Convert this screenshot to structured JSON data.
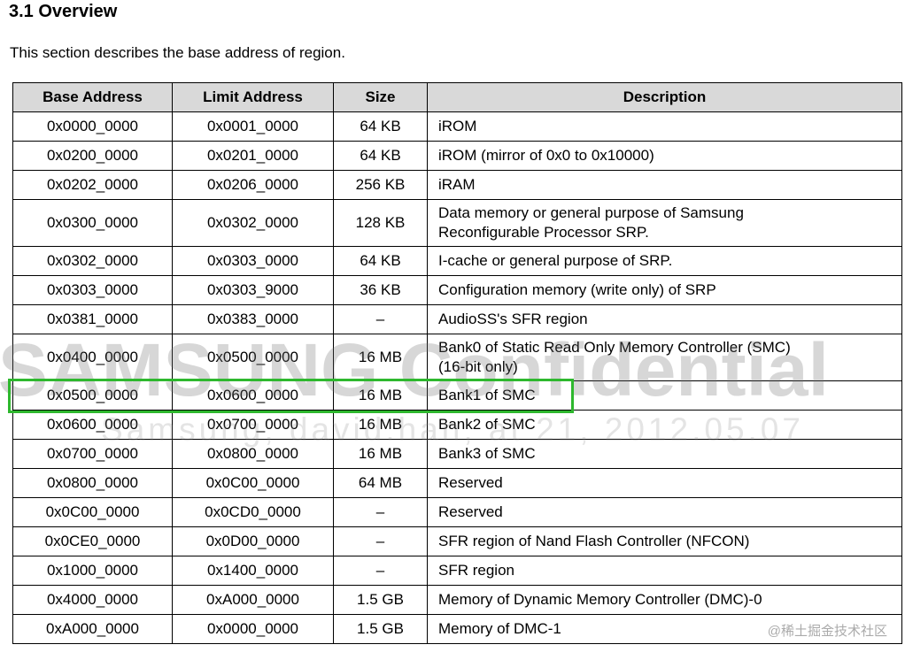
{
  "page": {
    "title": "3.1 Overview",
    "intro": "This section describes the base address of region."
  },
  "table": {
    "headers": [
      "Base Address",
      "Limit Address",
      "Size",
      "Description"
    ],
    "rows": [
      {
        "base": "0x0000_0000",
        "limit": "0x0001_0000",
        "size": "64 KB",
        "desc": "iROM",
        "highlight": false
      },
      {
        "base": "0x0200_0000",
        "limit": "0x0201_0000",
        "size": "64 KB",
        "desc": "iROM (mirror of 0x0 to 0x10000)",
        "highlight": false
      },
      {
        "base": "0x0202_0000",
        "limit": "0x0206_0000",
        "size": "256 KB",
        "desc": "iRAM",
        "highlight": false
      },
      {
        "base": "0x0300_0000",
        "limit": "0x0302_0000",
        "size": "128 KB",
        "desc": "Data memory or general purpose of Samsung Reconfigurable Processor SRP.",
        "highlight": false
      },
      {
        "base": "0x0302_0000",
        "limit": "0x0303_0000",
        "size": "64 KB",
        "desc": "I-cache or general purpose of SRP.",
        "highlight": false
      },
      {
        "base": "0x0303_0000",
        "limit": "0x0303_9000",
        "size": "36 KB",
        "desc": "Configuration memory (write only) of SRP",
        "highlight": false
      },
      {
        "base": "0x0381_0000",
        "limit": "0x0383_0000",
        "size": "–",
        "desc": "AudioSS's SFR region",
        "highlight": false
      },
      {
        "base": "0x0400_0000",
        "limit": "0x0500_0000",
        "size": "16 MB",
        "desc": "Bank0 of Static Read Only Memory Controller (SMC) (16-bit only)",
        "highlight": false
      },
      {
        "base": "0x0500_0000",
        "limit": "0x0600_0000",
        "size": "16 MB",
        "desc": "Bank1 of SMC",
        "highlight": true
      },
      {
        "base": "0x0600_0000",
        "limit": "0x0700_0000",
        "size": "16 MB",
        "desc": "Bank2 of SMC",
        "highlight": false
      },
      {
        "base": "0x0700_0000",
        "limit": "0x0800_0000",
        "size": "16 MB",
        "desc": "Bank3 of SMC",
        "highlight": false
      },
      {
        "base": "0x0800_0000",
        "limit": "0x0C00_0000",
        "size": "64 MB",
        "desc": "Reserved",
        "highlight": false
      },
      {
        "base": "0x0C00_0000",
        "limit": "0x0CD0_0000",
        "size": "–",
        "desc": "Reserved",
        "highlight": false
      },
      {
        "base": "0x0CE0_0000",
        "limit": "0x0D00_0000",
        "size": "–",
        "desc": "SFR region of Nand Flash Controller (NFCON)",
        "highlight": false
      },
      {
        "base": "0x1000_0000",
        "limit": "0x1400_0000",
        "size": "–",
        "desc": "SFR region",
        "highlight": false
      },
      {
        "base": "0x4000_0000",
        "limit": "0xA000_0000",
        "size": "1.5 GB",
        "desc": "Memory of Dynamic Memory Controller (DMC)-0",
        "highlight": false
      },
      {
        "base": "0xA000_0000",
        "limit": "0x0000_0000",
        "size": "1.5 GB",
        "desc": "Memory of DMC-1",
        "highlight": false
      }
    ]
  },
  "watermark": {
    "line1": "SAMSUNG Confidential",
    "line2": "Samsung,  david.han,  at 21, 2012.05.07"
  },
  "footer_watermark": "@稀土掘金技术社区",
  "colors": {
    "highlight_border": "#2eb82e",
    "header_bg": "#d9d9d9"
  }
}
